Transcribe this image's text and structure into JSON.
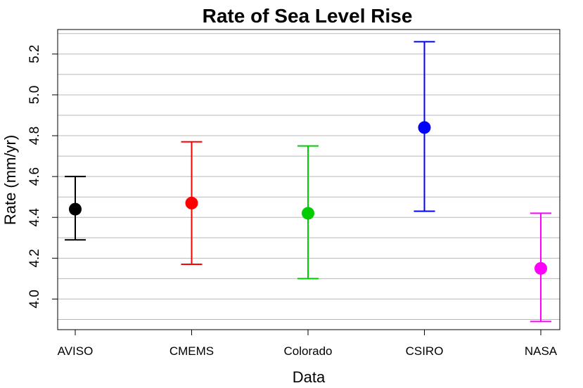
{
  "chart_data": {
    "type": "scatter",
    "variant": "error-bar",
    "title": "Rate of Sea Level Rise",
    "xlabel": "Data",
    "ylabel": "Rate (mm/yr)",
    "categories": [
      "AVISO",
      "CMEMS",
      "Colorado",
      "CSIRO",
      "NASA"
    ],
    "values": [
      4.44,
      4.47,
      4.42,
      4.84,
      4.15
    ],
    "lower": [
      4.29,
      4.17,
      4.1,
      4.43,
      3.89
    ],
    "upper": [
      4.6,
      4.77,
      4.75,
      5.26,
      4.42
    ],
    "colors": [
      "#000000",
      "#ff0000",
      "#00cd00",
      "#0000ff",
      "#ff00ff"
    ],
    "yticks": [
      4.0,
      4.2,
      4.4,
      4.6,
      4.8,
      5.0,
      5.2
    ],
    "ytick_labels": [
      "4.0",
      "4.2",
      "4.4",
      "4.6",
      "4.8",
      "5.0",
      "5.2"
    ],
    "ylim": [
      3.85,
      5.32
    ],
    "grid": "horizontal",
    "grid_step": 0.1,
    "legend": "none"
  }
}
